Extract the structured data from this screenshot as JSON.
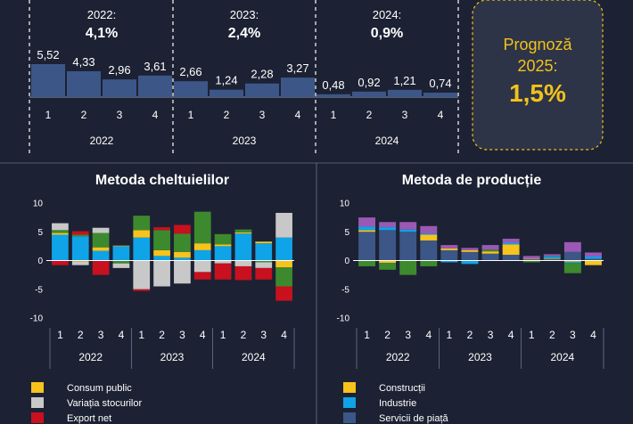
{
  "top_panel": {
    "years": [
      {
        "label": "2022:",
        "value": "4,1%",
        "year": "2022",
        "quarters": [
          "1",
          "2",
          "3",
          "4"
        ],
        "values": [
          5.52,
          4.33,
          2.96,
          3.61
        ],
        "value_labels": [
          "5,52",
          "4,33",
          "2,96",
          "3,61"
        ]
      },
      {
        "label": "2023:",
        "value": "2,4%",
        "year": "2023",
        "quarters": [
          "1",
          "2",
          "3",
          "4"
        ],
        "values": [
          2.66,
          1.24,
          2.28,
          3.27
        ],
        "value_labels": [
          "2,66",
          "1,24",
          "2,28",
          "3,27"
        ]
      },
      {
        "label": "2024:",
        "value": "0,9%",
        "year": "2024",
        "quarters": [
          "1",
          "2",
          "3",
          "4"
        ],
        "values": [
          0.48,
          0.92,
          1.21,
          0.74
        ],
        "value_labels": [
          "0,48",
          "0,92",
          "1,21",
          "0,74"
        ]
      }
    ],
    "forecast": {
      "line1": "Prognoză",
      "line2": "2025:",
      "value": "1,5%"
    }
  },
  "colors": {
    "bar": "#3c5687",
    "consum_public": "#f7c31c",
    "variatia_stocurilor": "#c8c8c8",
    "export_net": "#c8101e",
    "constructii": "#f7c31c",
    "industrie": "#0fa3e8",
    "servicii_piata": "#3c5687",
    "consum_privat": "#0fa3e8",
    "investitii": "#3d8a2e",
    "agricultura": "#3d8a2e",
    "servicii_netranzactionabile": "#9b59b6",
    "forecast_border": "#f2c21b",
    "forecast_bg": "#2d3447"
  },
  "chart_data": [
    {
      "type": "bar",
      "title": "",
      "categories": [
        "2022 Q1",
        "2022 Q2",
        "2022 Q3",
        "2022 Q4",
        "2023 Q1",
        "2023 Q2",
        "2023 Q3",
        "2023 Q4",
        "2024 Q1",
        "2024 Q2",
        "2024 Q3",
        "2024 Q4"
      ],
      "values": [
        5.52,
        4.33,
        2.96,
        3.61,
        2.66,
        1.24,
        2.28,
        3.27,
        0.48,
        0.92,
        1.21,
        0.74
      ],
      "ylim": [
        0,
        6
      ]
    },
    {
      "type": "bar",
      "stacked": true,
      "title": "Metoda cheltuielilor",
      "categories": [
        "2022 Q1",
        "2022 Q2",
        "2022 Q3",
        "2022 Q4",
        "2023 Q1",
        "2023 Q2",
        "2023 Q3",
        "2023 Q4",
        "2024 Q1",
        "2024 Q2",
        "2024 Q3",
        "2024 Q4"
      ],
      "ylim": [
        -10,
        10
      ],
      "yticks": [
        "10",
        "5",
        "0",
        "-5",
        "-10"
      ],
      "quarter_labels": [
        "1",
        "2",
        "3",
        "4",
        "1",
        "2",
        "3",
        "4",
        "1",
        "2",
        "3",
        "4"
      ],
      "year_labels": [
        "2022",
        "2023",
        "2024"
      ],
      "series": [
        {
          "name": "",
          "color_key": "consum_privat",
          "values": [
            4.5,
            4.2,
            1.7,
            2.5,
            4.0,
            0.8,
            0.5,
            1.8,
            2.5,
            4.7,
            3.0,
            4.0
          ]
        },
        {
          "name": "Consum public",
          "color_key": "consum_public",
          "values": [
            0.3,
            -0.2,
            0.6,
            0.1,
            1.3,
            1.0,
            1.0,
            1.2,
            0.3,
            0.2,
            0.3,
            -1.2
          ]
        },
        {
          "name": "",
          "color_key": "investitii",
          "values": [
            0.5,
            0.3,
            2.5,
            -0.5,
            2.5,
            3.5,
            3.2,
            5.5,
            1.8,
            0.5,
            -0.3,
            -3.3
          ]
        },
        {
          "name": "Variația stocurilor",
          "color_key": "variatia_stocurilor",
          "values": [
            1.2,
            -0.6,
            0.9,
            -0.8,
            -5.0,
            -4.5,
            -4.0,
            -2.0,
            -0.5,
            -1.0,
            -1.0,
            4.3
          ]
        },
        {
          "name": "Export net",
          "color_key": "export_net",
          "values": [
            -0.8,
            0.6,
            -2.5,
            0.0,
            -0.3,
            0.5,
            1.5,
            -1.3,
            -2.8,
            -2.4,
            -2.0,
            -2.5
          ]
        }
      ]
    },
    {
      "type": "bar",
      "stacked": true,
      "title": "Metoda de producție",
      "categories": [
        "2022 Q1",
        "2022 Q2",
        "2022 Q3",
        "2022 Q4",
        "2023 Q1",
        "2023 Q2",
        "2023 Q3",
        "2023 Q4",
        "2024 Q1",
        "2024 Q2",
        "2024 Q3",
        "2024 Q4"
      ],
      "ylim": [
        -10,
        10
      ],
      "yticks": [
        "10",
        "5",
        "0",
        "-5",
        "-10"
      ],
      "quarter_labels": [
        "1",
        "2",
        "3",
        "4",
        "1",
        "2",
        "3",
        "4",
        "1",
        "2",
        "3",
        "4"
      ],
      "year_labels": [
        "2022",
        "2023",
        "2024"
      ],
      "series": [
        {
          "name": "Servicii de piață",
          "color_key": "servicii_piata",
          "values": [
            5.0,
            5.3,
            5.0,
            3.5,
            1.8,
            1.5,
            1.2,
            1.0,
            0.2,
            0.3,
            1.5,
            0.3
          ]
        },
        {
          "name": "Construcții",
          "color_key": "constructii",
          "values": [
            0.3,
            -0.4,
            0.0,
            1.0,
            0.3,
            0.3,
            0.4,
            1.8,
            0.1,
            0.1,
            -0.2,
            -0.8
          ]
        },
        {
          "name": "Industrie",
          "color_key": "industrie",
          "values": [
            0.6,
            0.5,
            0.4,
            0.2,
            -0.3,
            -0.6,
            0.0,
            0.3,
            0.0,
            0.3,
            -0.2,
            0.4
          ]
        },
        {
          "name": "",
          "color_key": "agricultura",
          "values": [
            -1.0,
            -1.2,
            -2.5,
            -1.0,
            0.0,
            0.0,
            0.3,
            0.0,
            -0.3,
            0.1,
            -1.8,
            0.0
          ]
        },
        {
          "name": "",
          "color_key": "servicii_netranzactionabile",
          "values": [
            1.6,
            0.9,
            1.3,
            1.3,
            0.6,
            0.4,
            0.8,
            0.7,
            0.5,
            0.3,
            1.7,
            0.7
          ]
        }
      ]
    }
  ],
  "legends": {
    "left": [
      {
        "label": "Consum public",
        "color_key": "consum_public"
      },
      {
        "label": "Variația stocurilor",
        "color_key": "variatia_stocurilor"
      },
      {
        "label": "Export net",
        "color_key": "export_net"
      }
    ],
    "right": [
      {
        "label": "Construcții",
        "color_key": "constructii"
      },
      {
        "label": "Industrie",
        "color_key": "industrie"
      },
      {
        "label": "Servicii de piață",
        "color_key": "servicii_piata"
      }
    ]
  }
}
